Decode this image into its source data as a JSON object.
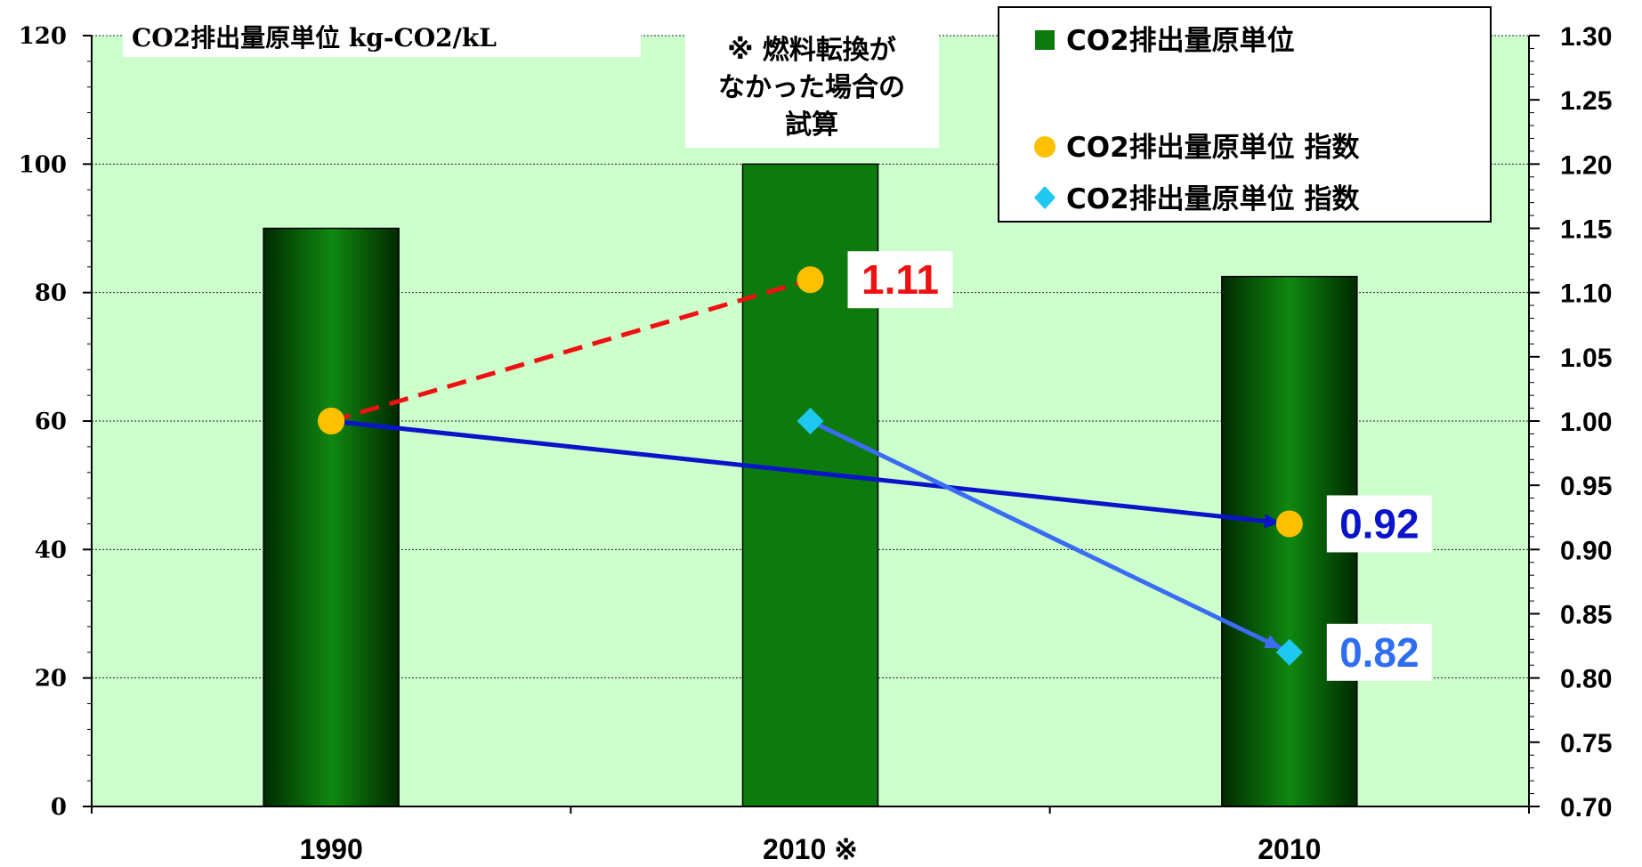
{
  "chart_data": {
    "type": "bar",
    "categories": [
      "1990",
      "2010 ※",
      "2010"
    ],
    "values": [
      90,
      100,
      82.5
    ],
    "ylim": [
      0,
      120
    ],
    "yticks": [
      0,
      20,
      40,
      60,
      80,
      100,
      120
    ],
    "y2lim": [
      0.7,
      1.3
    ],
    "y2ticks": [
      "0.70",
      "0.75",
      "0.80",
      "0.85",
      "0.90",
      "0.95",
      "1.00",
      "1.05",
      "1.10",
      "1.15",
      "1.20",
      "1.25",
      "1.30"
    ],
    "grid": true,
    "legend_position": "top-right",
    "unit_label": "CO2排出量原単位 kg-CO2/kL",
    "note": [
      "※ 燃料転換が",
      "なかった場合の",
      "試算"
    ],
    "bar_series_name": "CO2排出量原単位",
    "index_series": [
      {
        "name": "CO2排出量原単位 指数",
        "from": {
          "category": "1990",
          "value": 1.0
        },
        "to": {
          "category": "2010 ※",
          "value": 1.11
        },
        "to_label": "1.11",
        "line_color": "#ee1111",
        "label_color": "#ee1111",
        "marker": "circle",
        "marker_color": "#ffc000",
        "dashed": true
      },
      {
        "name": "CO2排出量原単位 指数",
        "from": {
          "category": "1990",
          "value": 1.0
        },
        "to": {
          "category": "2010",
          "value": 0.92
        },
        "to_label": "0.92",
        "line_color": "#0a14c8",
        "label_color": "#0a14c8",
        "marker": "circle",
        "marker_color": "#ffc000",
        "dashed": false
      },
      {
        "name": "CO2排出量原単位 指数",
        "from": {
          "category": "2010 ※",
          "value": 1.0
        },
        "to": {
          "category": "2010",
          "value": 0.82
        },
        "to_label": "0.82",
        "line_color": "#3a6cf4",
        "label_color": "#2f6ef0",
        "marker": "diamond",
        "marker_color": "#1ec8f0",
        "dashed": false
      }
    ],
    "legend": [
      {
        "label": "CO2排出量原単位",
        "marker": "square",
        "color": "#0d7a0d"
      },
      {
        "label": "CO2排出量原単位 指数",
        "marker": "circle",
        "color": "#ffc000"
      },
      {
        "label": "CO2排出量原単位 指数",
        "marker": "diamond",
        "color": "#1ec8f0"
      }
    ],
    "colors": {
      "plot_bg": "#ccffcc",
      "bar": "#0d7a0d",
      "bar_dark": "#003800"
    }
  }
}
